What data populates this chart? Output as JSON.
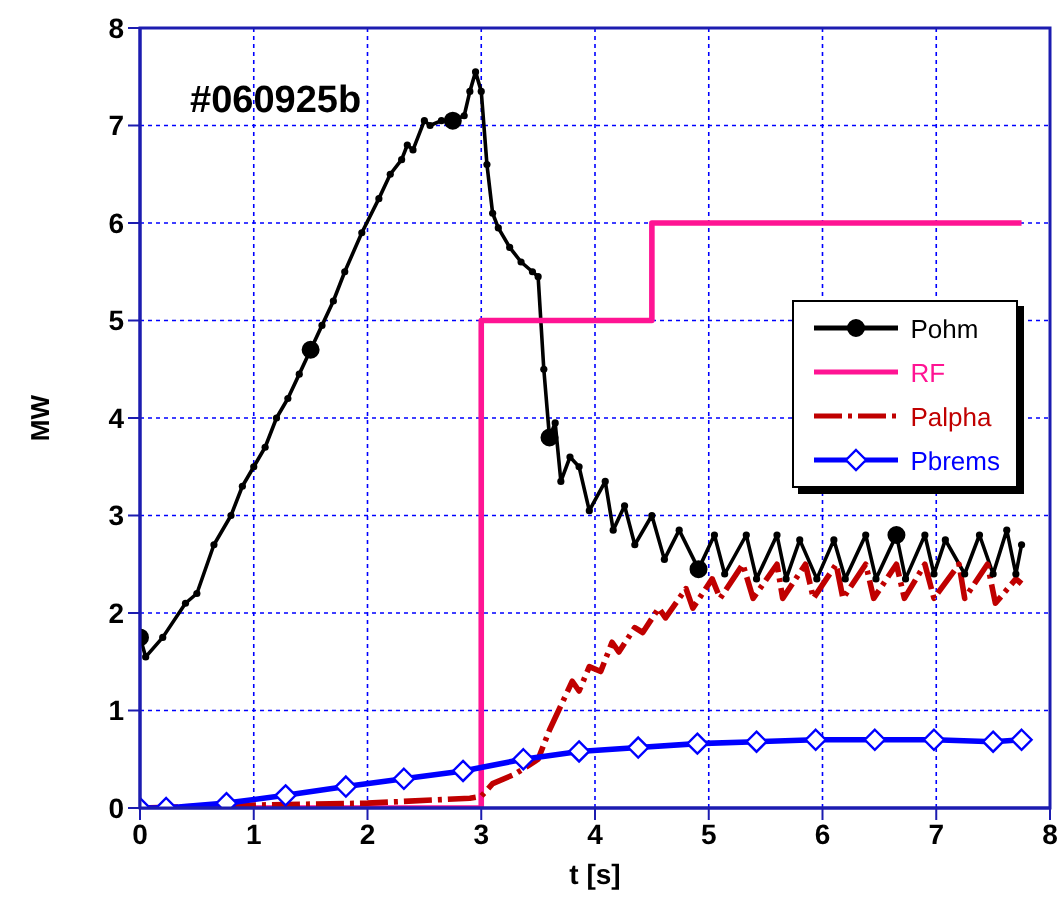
{
  "chart_data": {
    "type": "line",
    "title": "#060925b",
    "xlabel": "t [s]",
    "ylabel": "MW",
    "xlim": [
      0,
      8
    ],
    "xticks": [
      0,
      1,
      2,
      3,
      4,
      5,
      6,
      7,
      8
    ],
    "ylim": [
      0,
      8
    ],
    "yticks": [
      0,
      1,
      2,
      3,
      4,
      5,
      6,
      7,
      8
    ],
    "grid": true,
    "legend": "right",
    "series": [
      {
        "name": "Pohm",
        "color": "#000000",
        "marker": "circle",
        "line_style": "solid",
        "x": [
          0,
          0.05,
          0.2,
          0.4,
          0.5,
          0.65,
          0.8,
          0.9,
          1.0,
          1.1,
          1.2,
          1.3,
          1.4,
          1.5,
          1.6,
          1.7,
          1.8,
          1.95,
          2.1,
          2.2,
          2.3,
          2.35,
          2.4,
          2.5,
          2.55,
          2.65,
          2.75,
          2.85,
          2.9,
          2.95,
          3.0,
          3.05,
          3.1,
          3.15,
          3.25,
          3.35,
          3.45,
          3.5,
          3.55,
          3.6,
          3.65,
          3.7,
          3.78,
          3.86,
          3.95,
          4.09,
          4.16,
          4.26,
          4.35,
          4.5,
          4.61,
          4.74,
          4.91,
          5.05,
          5.14,
          5.33,
          5.42,
          5.6,
          5.68,
          5.8,
          5.95,
          6.1,
          6.2,
          6.38,
          6.47,
          6.65,
          6.73,
          6.9,
          6.98,
          7.08,
          7.25,
          7.38,
          7.5,
          7.62,
          7.7,
          7.75
        ],
        "values": [
          1.75,
          1.55,
          1.75,
          2.1,
          2.2,
          2.7,
          3.0,
          3.3,
          3.5,
          3.7,
          4.0,
          4.2,
          4.45,
          4.7,
          4.95,
          5.2,
          5.5,
          5.9,
          6.25,
          6.5,
          6.65,
          6.8,
          6.75,
          7.05,
          7.0,
          7.05,
          7.05,
          7.1,
          7.35,
          7.55,
          7.35,
          6.6,
          6.1,
          5.95,
          5.75,
          5.6,
          5.5,
          5.45,
          4.5,
          3.8,
          3.95,
          3.35,
          3.6,
          3.5,
          3.05,
          3.35,
          2.85,
          3.1,
          2.7,
          3.0,
          2.55,
          2.85,
          2.45,
          2.8,
          2.4,
          2.8,
          2.35,
          2.8,
          2.35,
          2.75,
          2.35,
          2.75,
          2.35,
          2.8,
          2.35,
          2.8,
          2.35,
          2.8,
          2.4,
          2.75,
          2.4,
          2.8,
          2.4,
          2.85,
          2.4,
          2.7
        ]
      },
      {
        "name": "RF",
        "color": "#ff1493",
        "marker": "none",
        "line_style": "solid",
        "x": [
          0,
          3.0,
          3.0,
          4.5,
          4.5,
          7.75
        ],
        "values": [
          0,
          0,
          5,
          5,
          6,
          6
        ]
      },
      {
        "name": "Palpha",
        "color": "#c00000",
        "marker": "none",
        "line_style": "dashed",
        "x": [
          0,
          1,
          2,
          2.9,
          3.0,
          3.1,
          3.3,
          3.5,
          3.6,
          3.7,
          3.8,
          3.86,
          3.95,
          4.05,
          4.15,
          4.21,
          4.35,
          4.42,
          4.56,
          4.62,
          4.8,
          4.86,
          5.03,
          5.1,
          5.3,
          5.39,
          5.6,
          5.65,
          5.85,
          5.92,
          6.12,
          6.18,
          6.38,
          6.45,
          6.65,
          6.72,
          6.9,
          6.98,
          7.2,
          7.25,
          7.45,
          7.52,
          7.7,
          7.75
        ],
        "values": [
          0,
          0.03,
          0.05,
          0.1,
          0.12,
          0.25,
          0.35,
          0.5,
          0.8,
          1.05,
          1.3,
          1.2,
          1.45,
          1.4,
          1.7,
          1.6,
          1.85,
          1.8,
          2.05,
          1.95,
          2.25,
          2.05,
          2.35,
          2.15,
          2.5,
          2.15,
          2.5,
          2.15,
          2.5,
          2.15,
          2.5,
          2.15,
          2.5,
          2.15,
          2.5,
          2.15,
          2.5,
          2.15,
          2.5,
          2.15,
          2.5,
          2.1,
          2.35,
          2.3
        ]
      },
      {
        "name": "Pbrems",
        "color": "#0000ff",
        "marker": "diamond",
        "line_style": "solid",
        "x": [
          0,
          0.23,
          0.76,
          1.28,
          1.81,
          2.32,
          2.84,
          3.37,
          3.86,
          4.38,
          4.9,
          5.42,
          5.94,
          6.46,
          6.98,
          7.5,
          7.75
        ],
        "values": [
          0,
          0,
          0.05,
          0.13,
          0.22,
          0.3,
          0.38,
          0.5,
          0.58,
          0.62,
          0.66,
          0.68,
          0.7,
          0.7,
          0.7,
          0.68,
          0.7
        ]
      }
    ]
  }
}
